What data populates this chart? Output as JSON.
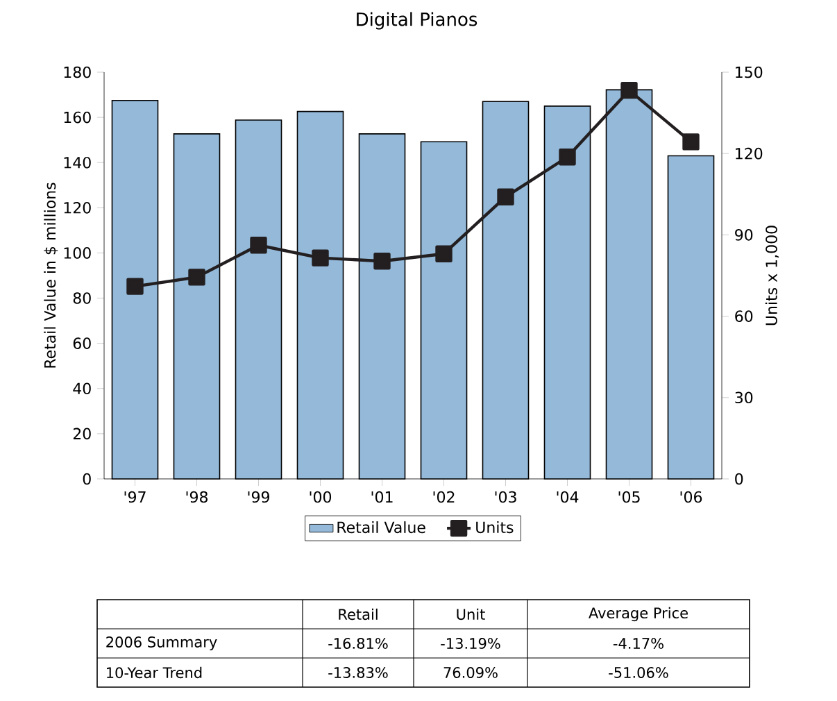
{
  "chart_data": {
    "type": "bar",
    "title": "Digital Pianos",
    "categories": [
      "'97",
      "'98",
      "'99",
      "'00",
      "'01",
      "'02",
      "'03",
      "'04",
      "'05",
      "'06"
    ],
    "series": [
      {
        "name": "Retail Value",
        "color": "#94b9d9",
        "values": [
          167.5,
          152.7,
          158.8,
          162.6,
          152.7,
          149.2,
          167,
          165,
          172.2,
          143
        ]
      },
      {
        "name": "Units",
        "type": "line",
        "axis": "y2",
        "color": "#231f20",
        "values": [
          71,
          74.4,
          86.2,
          81.5,
          80.3,
          83,
          104,
          118.7,
          143.3,
          124.3
        ]
      }
    ],
    "ylabel": "Retail Value in $ millions",
    "y2label": "Units x 1,000",
    "ylim": [
      0,
      180
    ],
    "yticks": [
      0,
      20,
      40,
      60,
      80,
      100,
      120,
      140,
      160,
      180
    ],
    "y2lim": [
      0,
      150
    ],
    "y2ticks": [
      0,
      30,
      60,
      90,
      120,
      150
    ],
    "legend": "bottom",
    "marker": "square",
    "grid": false,
    "annotations": [
      "Retail",
      "Unit",
      "Average Price",
      "2006 Summary",
      "-16.81%",
      "-13.19%",
      "-4.17%",
      "10-Year Trend",
      "-13.83%",
      "76.09%",
      "-51.06%"
    ]
  }
}
